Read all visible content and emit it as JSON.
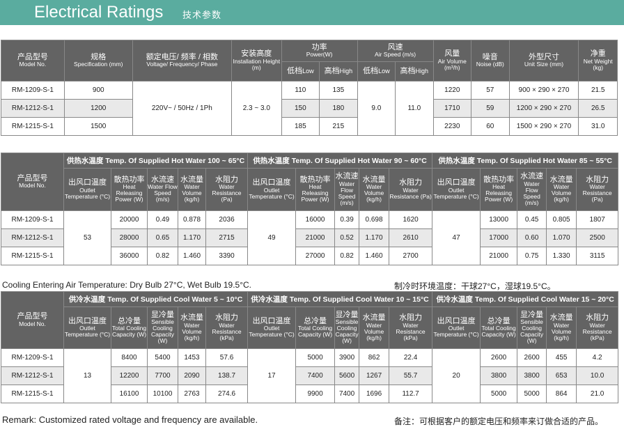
{
  "header": {
    "title_en": "Electrical Ratings",
    "title_cn": "技术参数"
  },
  "table1": {
    "headers": {
      "model_cn": "产品型号",
      "model_en": "Model No.",
      "spec_cn": "规格",
      "spec_en": "Specification (mm)",
      "volt_cn": "额定电压/ 频率 / 相数",
      "volt_en": "Voltage/ Frequency/ Phase",
      "height_cn": "安装高度",
      "height_en": "Installation Height (m)",
      "power_cn": "功率",
      "power_en": "Power(W)",
      "speed_cn": "风速",
      "speed_en": "Air Speed (m/s)",
      "low_cn": "低档",
      "low_en": "Low",
      "high_cn": "高档",
      "high_en": "High",
      "airvol_cn": "风量",
      "airvol_en": "Air Volume",
      "airvol_unit": "(m³/h)",
      "noise_cn": "噪音",
      "noise_en": "Noise (dB)",
      "size_cn": "外型尺寸",
      "size_en": "Unit Size (mm)",
      "weight_cn": "净重",
      "weight_en": "Net Weight (kg)"
    },
    "shared": {
      "voltage": "220V~ / 50Hz / 1Ph",
      "height": "2.3 ~ 3.0",
      "speed_low": "9.0",
      "speed_high": "11.0"
    },
    "rows": [
      {
        "model": "RM-1209-S-1",
        "spec": "900",
        "p_low": "110",
        "p_high": "135",
        "airvol": "1220",
        "noise": "57",
        "size": "900 × 290 × 270",
        "weight": "21.5"
      },
      {
        "model": "RM-1212-S-1",
        "spec": "1200",
        "p_low": "150",
        "p_high": "180",
        "airvol": "1710",
        "noise": "59",
        "size": "1200 × 290 × 270",
        "weight": "26.5"
      },
      {
        "model": "RM-1215-S-1",
        "spec": "1500",
        "p_low": "185",
        "p_high": "215",
        "airvol": "2230",
        "noise": "60",
        "size": "1500 × 290 × 270",
        "weight": "31.0"
      }
    ]
  },
  "table2": {
    "model_cn": "产品型号",
    "model_en": "Model No.",
    "groups": [
      {
        "cn": "供热水温度",
        "en": "Temp. Of Supplied Hot Water 100 ~ 65°C",
        "outlet": "53"
      },
      {
        "cn": "供热水温度",
        "en": "Temp. Of Supplied Hot Water 90 ~ 60°C",
        "outlet": "49"
      },
      {
        "cn": "供热水温度",
        "en": "Temp. Of Supplied Hot Water 85 ~ 55°C",
        "outlet": "47"
      }
    ],
    "cols": {
      "outlet_cn": "出风口温度",
      "outlet_en": "Outlet Temperature (°C)",
      "heat_cn": "散热功率",
      "heat_en": "Heat Releasing Power (W)",
      "flow_cn": "水流速",
      "flow_en": "Water Flow Speed (m/s)",
      "vol_cn": "水流量",
      "vol_en": "Water Volume (kg/h)",
      "res_cn": "水阻力",
      "res_en": "Water Resistance (Pa)"
    },
    "rows": [
      {
        "model": "RM-1209-S-1",
        "g": [
          [
            "20000",
            "0.49",
            "0.878",
            "2036"
          ],
          [
            "16000",
            "0.39",
            "0.698",
            "1620"
          ],
          [
            "13000",
            "0.45",
            "0.805",
            "1807"
          ]
        ]
      },
      {
        "model": "RM-1212-S-1",
        "g": [
          [
            "28000",
            "0.65",
            "1.170",
            "2715"
          ],
          [
            "21000",
            "0.52",
            "1.170",
            "2610"
          ],
          [
            "17000",
            "0.60",
            "1.070",
            "2500"
          ]
        ]
      },
      {
        "model": "RM-1215-S-1",
        "g": [
          [
            "36000",
            "0.82",
            "1.460",
            "3390"
          ],
          [
            "27000",
            "0.82",
            "1.460",
            "2700"
          ],
          [
            "21000",
            "0.75",
            "1.330",
            "3115"
          ]
        ]
      }
    ]
  },
  "cooling_note_en": "Cooling Entering Air Temperature: Dry Bulb 27°C, Wet Bulb 19.5°C.",
  "cooling_note_cn": "制冷时环境温度：干球27°C，湿球19.5°C。",
  "table3": {
    "model_cn": "产品型号",
    "model_en": "Model No.",
    "groups": [
      {
        "cn": "供冷水温度",
        "en": "Temp. Of Supplied Cool Water 5 ~ 10°C",
        "outlet": "13"
      },
      {
        "cn": "供冷水温度",
        "en": "Temp. Of Supplied Cool Water 10 ~ 15°C",
        "outlet": "17"
      },
      {
        "cn": "供冷水温度",
        "en": "Temp. Of Supplied Cool Water 15 ~ 20°C",
        "outlet": "20"
      }
    ],
    "cols": {
      "outlet_cn": "出风口温度",
      "outlet_en": "Outlet Temperature (°C)",
      "total_cn": "总冷量",
      "total_en": "Total Cooling Capacity (W)",
      "sens_cn": "显冷量",
      "sens_en": "Sensible Cooling Capacity (W)",
      "vol_cn": "水流量",
      "vol_en": "Water Volume (kg/h)",
      "res_cn": "水阻力",
      "res_en": "Water Resistance (kPa)"
    },
    "rows": [
      {
        "model": "RM-1209-S-1",
        "g": [
          [
            "8400",
            "5400",
            "1453",
            "57.6"
          ],
          [
            "5000",
            "3900",
            "862",
            "22.4"
          ],
          [
            "2600",
            "2600",
            "455",
            "4.2"
          ]
        ]
      },
      {
        "model": "RM-1212-S-1",
        "g": [
          [
            "12200",
            "7700",
            "2090",
            "138.7"
          ],
          [
            "7400",
            "5600",
            "1267",
            "55.7"
          ],
          [
            "3800",
            "3800",
            "653",
            "10.0"
          ]
        ]
      },
      {
        "model": "RM-1215-S-1",
        "g": [
          [
            "16100",
            "10100",
            "2763",
            "274.6"
          ],
          [
            "9900",
            "7400",
            "1696",
            "112.7"
          ],
          [
            "5000",
            "5000",
            "864",
            "21.0"
          ]
        ]
      }
    ]
  },
  "remark_en": "Remark: Customized rated voltage and frequency are available.",
  "remark_cn": "备注：可根据客户的额定电压和频率来订做合适的产品。"
}
